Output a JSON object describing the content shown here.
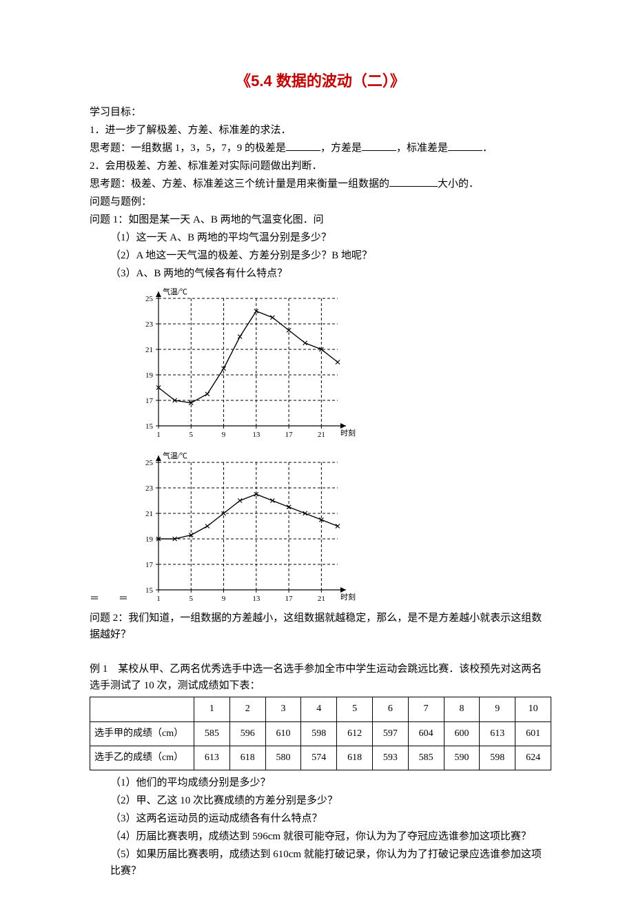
{
  "title": "《5.4 数据的波动（二）》",
  "goals_heading": "学习目标：",
  "goal1": "1．进一步了解极差、方差、标准差的求法．",
  "think1_lead": "思考题：一组数据 1，3，5，7，9 的极差是",
  "think1_mid": "，方差是",
  "think1_tail": "，标准差是",
  "think1_end": "．",
  "goal2": "2．会用极差、方差、标准差对实际问题做出判断．",
  "think2_lead": "思考题：极差、方差、标准差这三个统计量是用来衡量一组数据的",
  "think2_tail": "大小的．",
  "problems_heading": "问题与题例：",
  "p1_title": "问题 1：如图是某一天 A、B 两地的气温变化图．问",
  "p1_q1": "（1）这一天 A、B 两地的平均气温分别是多少？",
  "p1_q2": "（2）A 地这一天气温的极差、方差分别是多少？B 地呢？",
  "p1_q3": "（3）A、B 两地的气候各有什么特点？",
  "chart": {
    "y_label": "气温/℃",
    "x_label": "时刻",
    "y_ticks": [
      15,
      17,
      19,
      21,
      23,
      25
    ],
    "x_ticks": [
      1,
      5,
      9,
      13,
      17,
      21
    ],
    "line_color": "#000000",
    "grid_dash": "4,3",
    "axis_color": "#000000",
    "background": "#ffffff",
    "font_size": 11,
    "seriesA": {
      "x": [
        1,
        3,
        5,
        7,
        9,
        11,
        13,
        15,
        17,
        19,
        21,
        23
      ],
      "y": [
        18,
        17,
        16.8,
        17.5,
        19.5,
        22,
        24,
        23.5,
        22.5,
        21.5,
        21,
        20
      ]
    },
    "seriesB": {
      "x": [
        1,
        3,
        5,
        7,
        9,
        11,
        13,
        15,
        17,
        19,
        21,
        23
      ],
      "y": [
        19,
        19,
        19.3,
        20,
        21,
        22,
        22.5,
        22,
        21.5,
        21,
        20.5,
        20
      ]
    }
  },
  "eq_marks": "＝　　＝",
  "p2_text": "问题 2：我们知道，一组数据的方差越小，这组数据就越稳定，那么，是不是方差越小就表示这组数据越好？",
  "ex1_lead": "例 1　某校从甲、乙两名优秀选手中选一名选手参加全市中学生运动会跳远比赛．该校预先对这两名选手测试了 10 次，测试成绩如下表：",
  "table": {
    "headers": [
      "",
      "1",
      "2",
      "3",
      "4",
      "5",
      "6",
      "7",
      "8",
      "9",
      "10"
    ],
    "row1_label": "选手甲的成绩（cm）",
    "row1": [
      "585",
      "596",
      "610",
      "598",
      "612",
      "597",
      "604",
      "600",
      "613",
      "601"
    ],
    "row2_label": "选手乙的成绩（cm）",
    "row2": [
      "613",
      "618",
      "580",
      "574",
      "618",
      "593",
      "585",
      "590",
      "598",
      "624"
    ]
  },
  "ex1_q1": "（1）他们的平均成绩分别是多少？",
  "ex1_q2": "（2）甲、乙这 10 次比赛成绩的方差分别是多少？",
  "ex1_q3": "（3）这两名运动员的运动成绩各有什么特点？",
  "ex1_q4": "（4）历届比赛表明，成绩达到 596cm 就很可能夺冠，你认为为了夺冠应选谁参加这项比赛？",
  "ex1_q5": "（5）如果历届比赛表明，成绩达到 610cm 就能打破记录，你认为为了打破记录应选谁参加这项比赛？"
}
